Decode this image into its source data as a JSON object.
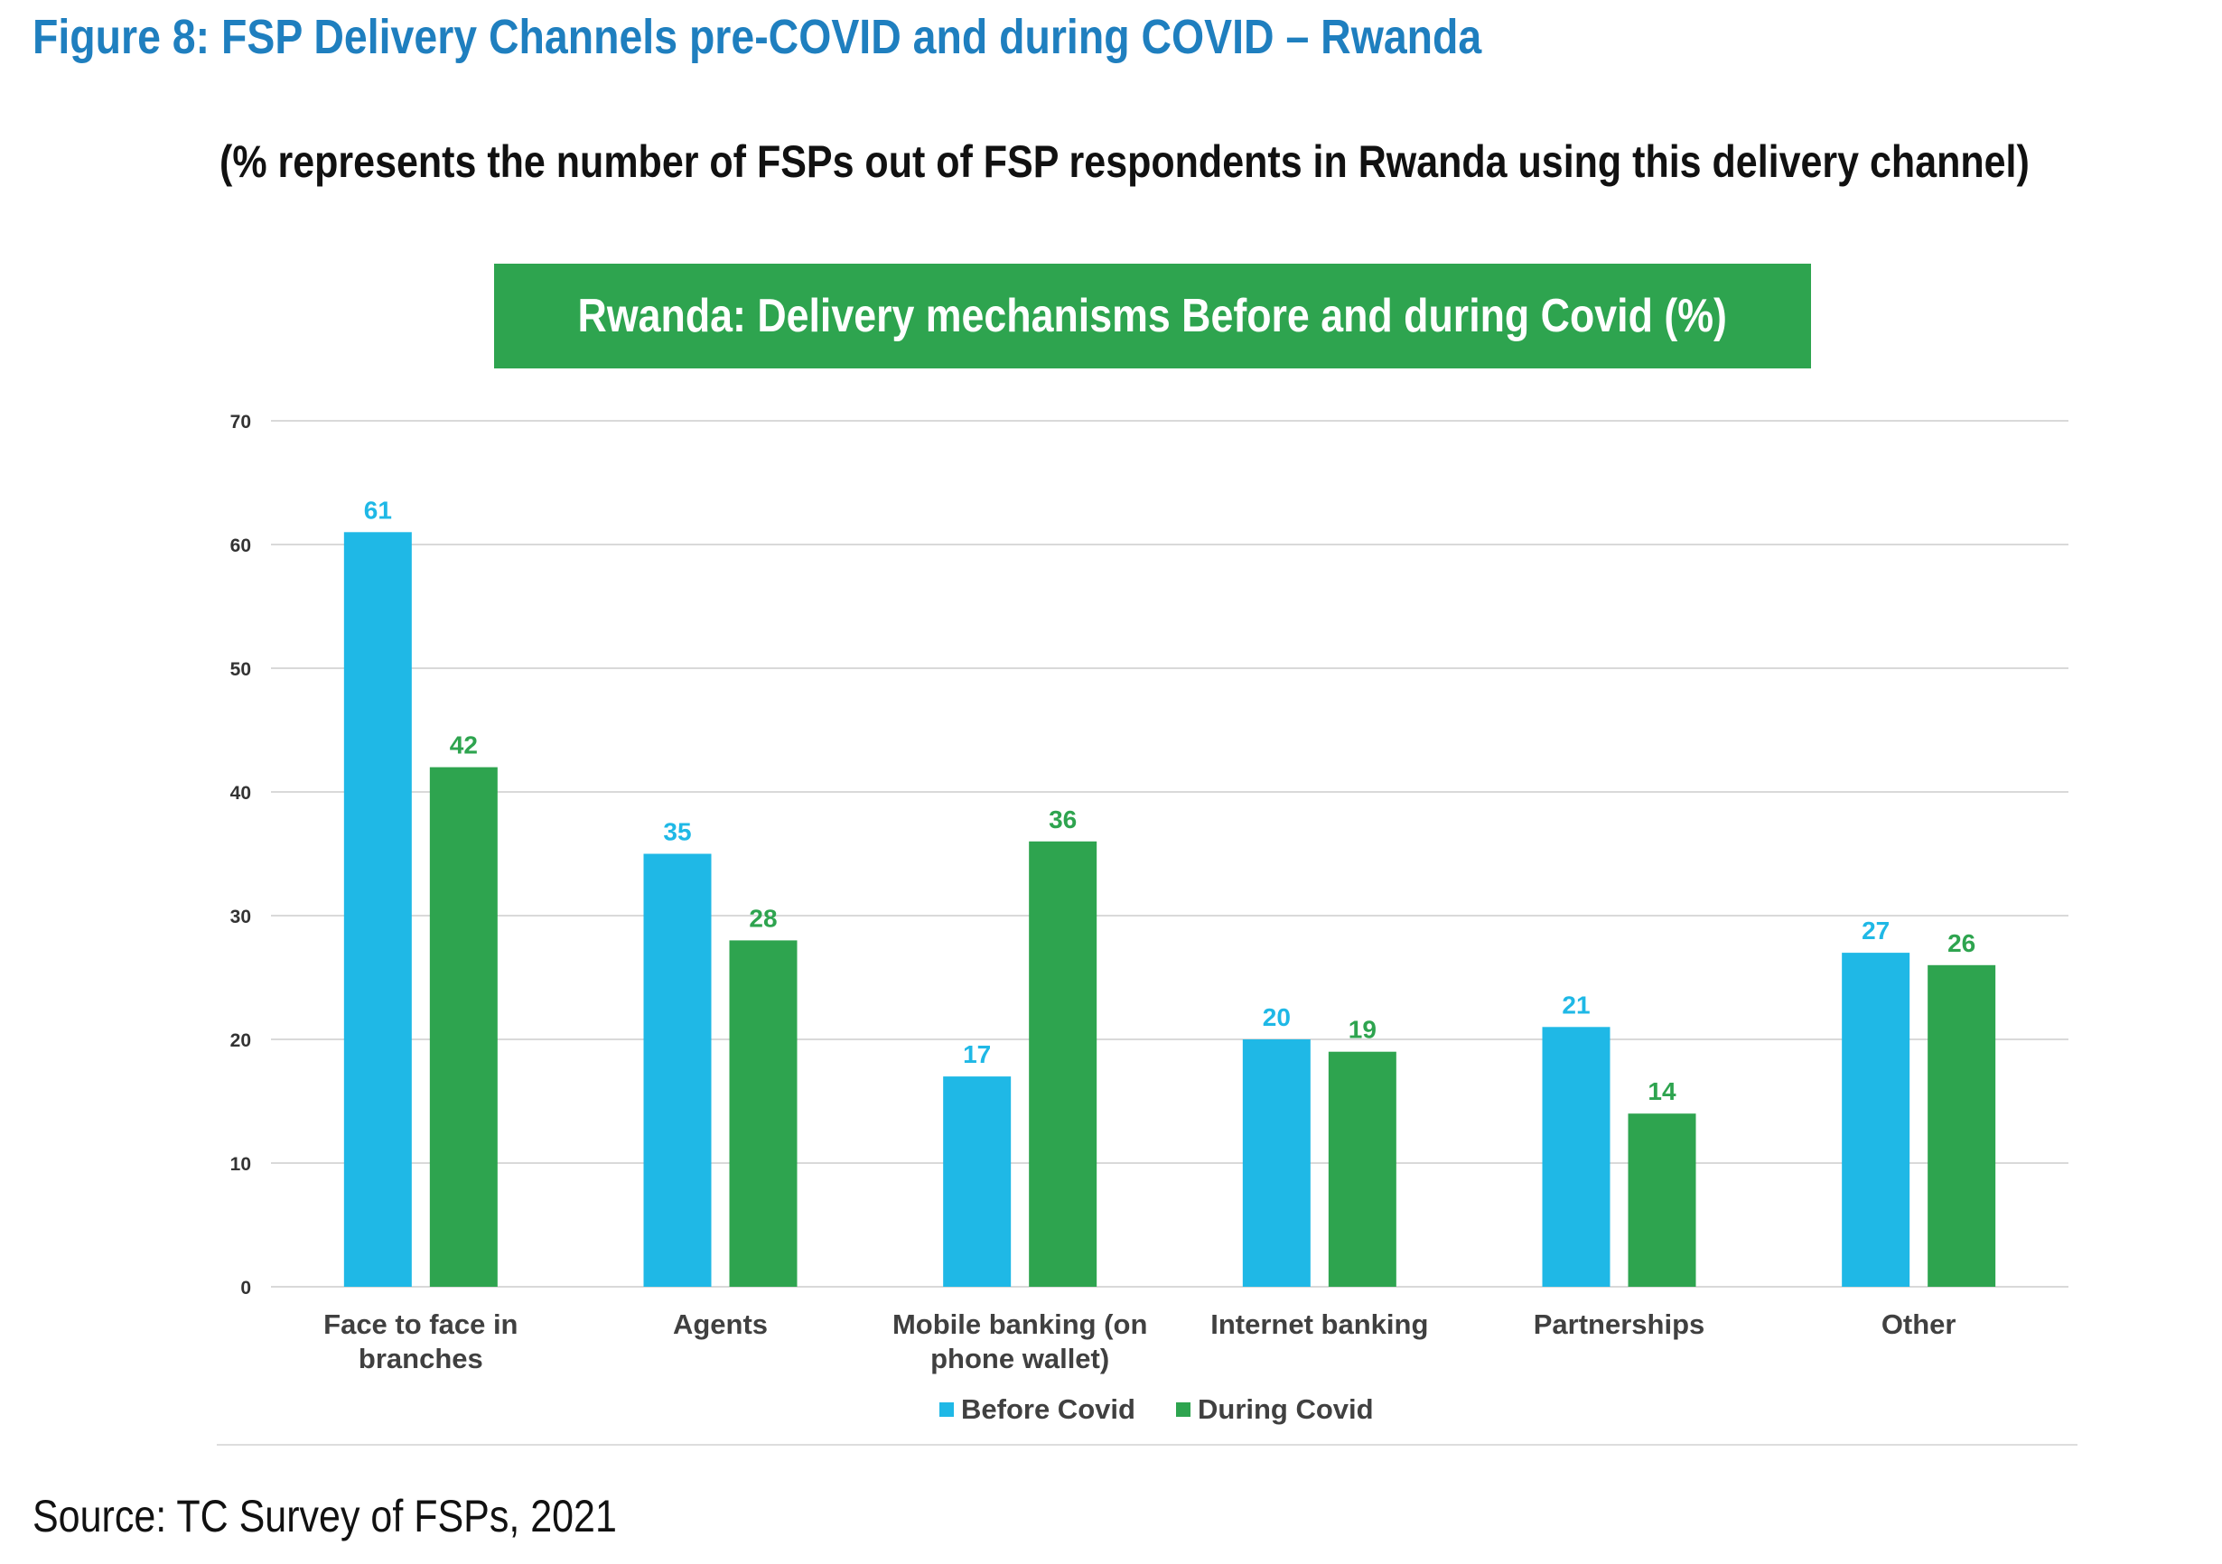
{
  "figure_title": "Figure 8: FSP Delivery Channels pre-COVID and during COVID – Rwanda",
  "subtitle": "(% represents the number of FSPs out of FSP respondents in Rwanda using this delivery channel)",
  "source": "Source: TC Survey of FSPs, 2021",
  "colors": {
    "before": "#1fb8e6",
    "during": "#2ea44f",
    "title": "#1f7fbf",
    "grid": "#d9d9d9"
  },
  "chart_data": {
    "type": "bar",
    "title": "Rwanda: Delivery mechanisms Before and during Covid (%)",
    "categories": [
      [
        "Face to face in",
        "branches"
      ],
      [
        "Agents"
      ],
      [
        "Mobile banking (on",
        "phone wallet)"
      ],
      [
        "Internet banking"
      ],
      [
        "Partnerships"
      ],
      [
        "Other"
      ]
    ],
    "series": [
      {
        "name": "Before Covid",
        "values": [
          61,
          35,
          17,
          20,
          21,
          27
        ],
        "color": "#1fb8e6"
      },
      {
        "name": "During Covid",
        "values": [
          42,
          28,
          36,
          19,
          14,
          26
        ],
        "color": "#2ea44f"
      }
    ],
    "ylim": [
      0,
      70
    ],
    "yticks": [
      0,
      10,
      20,
      30,
      40,
      50,
      60,
      70
    ],
    "grid": true,
    "legend_position": "bottom",
    "xlabel": "",
    "ylabel": ""
  }
}
